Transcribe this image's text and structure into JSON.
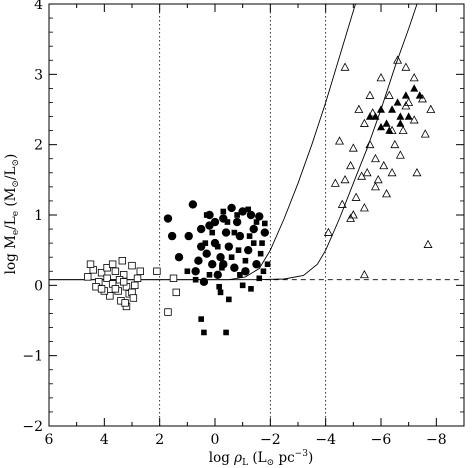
{
  "chart_data": {
    "type": "scatter",
    "title": "",
    "xlabel_parts": {
      "main": "log ",
      "rho": "ρ",
      "rho_sub": "L",
      "open": " (L",
      "sun": "⊙",
      "rest": " pc",
      "exp": "−3",
      "close": ")"
    },
    "ylabel_parts": {
      "main": "log M",
      "sub1": "e",
      "slash": "/L",
      "sub2": "e",
      "open": " (M",
      "sun1": "⊙",
      "mid": "/L",
      "sun2": "⊙",
      "close": ")"
    },
    "x_ticks": [
      {
        "v": 6,
        "label": "6"
      },
      {
        "v": 4,
        "label": "4"
      },
      {
        "v": 2,
        "label": "2"
      },
      {
        "v": 0,
        "label": "0"
      },
      {
        "v": -2,
        "label": "−2"
      },
      {
        "v": -4,
        "label": "−4"
      },
      {
        "v": -6,
        "label": "−6"
      },
      {
        "v": -8,
        "label": "−8"
      }
    ],
    "y_ticks": [
      {
        "v": -2,
        "label": "−2"
      },
      {
        "v": -1,
        "label": "−1"
      },
      {
        "v": 0,
        "label": "0"
      },
      {
        "v": 1,
        "label": "1"
      },
      {
        "v": 2,
        "label": "2"
      },
      {
        "v": 3,
        "label": "3"
      },
      {
        "v": 4,
        "label": "4"
      }
    ],
    "xlim": [
      6,
      -9
    ],
    "ylim": [
      -2,
      4
    ],
    "x_reversed": true,
    "vertical_dotted_lines": [
      2,
      -2,
      -4
    ],
    "reference_lines": [
      {
        "style": "solid",
        "points": [
          [
            6,
            0.08
          ],
          [
            -0.5,
            0.08
          ],
          [
            -1.1,
            0.12
          ],
          [
            -1.6,
            0.24
          ],
          [
            -2.0,
            0.5
          ],
          [
            -2.5,
            0.95
          ],
          [
            -3.0,
            1.45
          ],
          [
            -3.5,
            2.0
          ],
          [
            -4.0,
            2.6
          ],
          [
            -4.5,
            3.25
          ],
          [
            -5.0,
            3.9
          ],
          [
            -5.08,
            4.0
          ]
        ]
      },
      {
        "style": "solid",
        "points": [
          [
            6,
            0.08
          ],
          [
            -1.5,
            0.08
          ],
          [
            -2.5,
            0.09
          ],
          [
            -3.2,
            0.14
          ],
          [
            -3.7,
            0.3
          ],
          [
            -4.0,
            0.5
          ],
          [
            -4.5,
            0.95
          ],
          [
            -5.0,
            1.45
          ],
          [
            -5.5,
            1.95
          ],
          [
            -6.0,
            2.5
          ],
          [
            -6.5,
            3.1
          ],
          [
            -7.0,
            3.65
          ],
          [
            -7.3,
            4.0
          ]
        ]
      },
      {
        "style": "dashed",
        "points": [
          [
            -1.8,
            0.08
          ],
          [
            -8.9,
            0.08
          ]
        ]
      }
    ],
    "series": [
      {
        "marker": "open-square",
        "points": [
          [
            4.4,
            0.22
          ],
          [
            4.1,
            0.18
          ],
          [
            3.9,
            0.1
          ],
          [
            3.6,
            0.2
          ],
          [
            3.3,
            0.15
          ],
          [
            3.0,
            0.28
          ],
          [
            2.8,
            0.1
          ],
          [
            4.2,
            0.05
          ],
          [
            3.7,
            0.02
          ],
          [
            3.2,
            -0.02
          ],
          [
            3.5,
            -0.08
          ],
          [
            3.1,
            -0.12
          ],
          [
            3.8,
            -0.15
          ],
          [
            4.0,
            -0.08
          ],
          [
            3.4,
            -0.22
          ],
          [
            3.2,
            -0.3
          ],
          [
            4.5,
            0.3
          ],
          [
            3.35,
            0.35
          ],
          [
            2.9,
            0.0
          ],
          [
            3.6,
            -0.05
          ],
          [
            3.0,
            -0.1
          ],
          [
            4.3,
            -0.02
          ],
          [
            2.7,
            0.2
          ],
          [
            3.45,
            0.08
          ],
          [
            3.9,
            0.25
          ],
          [
            4.1,
            -0.05
          ],
          [
            3.25,
            -0.25
          ],
          [
            4.6,
            0.12
          ],
          [
            2.1,
            0.2
          ],
          [
            1.5,
            0.1
          ],
          [
            1.4,
            -0.1
          ],
          [
            1.7,
            -0.38
          ],
          [
            3.7,
            0.3
          ],
          [
            3.3,
            0.05
          ],
          [
            2.95,
            -0.18
          ]
        ]
      },
      {
        "marker": "filled-circle",
        "points": [
          [
            1.7,
            0.95
          ],
          [
            0.8,
            1.15
          ],
          [
            -1.6,
            0.98
          ],
          [
            1.55,
            0.7
          ],
          [
            0.95,
            0.7
          ],
          [
            1.3,
            0.4
          ],
          [
            0.7,
            0.2
          ],
          [
            0.5,
            0.55
          ],
          [
            0.2,
            0.85
          ],
          [
            0.4,
            0.05
          ],
          [
            0.1,
            0.3
          ],
          [
            -0.3,
            0.95
          ],
          [
            -0.6,
            1.1
          ],
          [
            -1.0,
            1.05
          ],
          [
            -1.3,
            1.0
          ],
          [
            -1.8,
            0.75
          ],
          [
            0.0,
            0.6
          ],
          [
            0.3,
            0.45
          ],
          [
            -0.5,
            0.55
          ],
          [
            -0.9,
            0.7
          ],
          [
            -1.2,
            0.5
          ],
          [
            -1.5,
            0.3
          ],
          [
            0.6,
            0.35
          ],
          [
            -0.1,
            0.15
          ],
          [
            -0.7,
            0.25
          ],
          [
            -1.1,
            0.2
          ],
          [
            -0.4,
            0.75
          ],
          [
            0.2,
            1.0
          ],
          [
            -0.2,
            0.4
          ],
          [
            -0.8,
            0.9
          ],
          [
            0.5,
            0.8
          ],
          [
            -0.3,
            0.3
          ],
          [
            -1.4,
            0.8
          ],
          [
            0.0,
            0.9
          ]
        ]
      },
      {
        "marker": "filled-square",
        "points": [
          [
            0.5,
            -0.48
          ],
          [
            -0.4,
            -0.67
          ],
          [
            0.4,
            -0.67
          ],
          [
            1.0,
            0.2
          ],
          [
            0.7,
            0.08
          ],
          [
            -0.2,
            -0.1
          ],
          [
            -0.5,
            -0.2
          ],
          [
            -1.0,
            0.0
          ],
          [
            -1.3,
            -0.05
          ],
          [
            -1.6,
            0.1
          ],
          [
            -1.9,
            0.3
          ],
          [
            -1.7,
            0.6
          ],
          [
            -1.5,
            0.9
          ],
          [
            -1.8,
            0.88
          ],
          [
            -1.2,
            1.08
          ],
          [
            -0.8,
            1.0
          ],
          [
            -0.3,
            1.05
          ],
          [
            0.3,
            1.0
          ],
          [
            -0.6,
            0.4
          ],
          [
            -1.1,
            0.35
          ],
          [
            -0.1,
            0.55
          ],
          [
            0.2,
            0.15
          ],
          [
            -0.9,
            0.15
          ],
          [
            -1.4,
            0.6
          ],
          [
            -0.7,
            0.75
          ],
          [
            -0.25,
            0.25
          ],
          [
            0.35,
            0.6
          ],
          [
            -1.65,
            0.45
          ],
          [
            -1.25,
            0.7
          ],
          [
            -0.45,
            0.9
          ],
          [
            0.1,
            0.75
          ],
          [
            -0.15,
            -0.02
          ],
          [
            -1.75,
            0.2
          ],
          [
            -0.85,
            0.5
          ]
        ]
      },
      {
        "marker": "open-triangle",
        "points": [
          [
            -4.7,
            3.1
          ],
          [
            -6.6,
            3.2
          ],
          [
            -6.9,
            3.1
          ],
          [
            -7.2,
            2.95
          ],
          [
            -6.0,
            2.95
          ],
          [
            -5.6,
            2.7
          ],
          [
            -6.3,
            2.7
          ],
          [
            -7.5,
            2.65
          ],
          [
            -7.8,
            2.5
          ],
          [
            -7.2,
            2.35
          ],
          [
            -6.8,
            2.2
          ],
          [
            -6.4,
            2.2
          ],
          [
            -5.2,
            2.5
          ],
          [
            -5.4,
            2.3
          ],
          [
            -5.6,
            2.0
          ],
          [
            -5.0,
            1.95
          ],
          [
            -5.8,
            1.8
          ],
          [
            -6.1,
            1.7
          ],
          [
            -6.4,
            1.6
          ],
          [
            -5.3,
            1.55
          ],
          [
            -4.9,
            1.7
          ],
          [
            -4.7,
            1.5
          ],
          [
            -4.6,
            1.15
          ],
          [
            -5.0,
            1.0
          ],
          [
            -5.4,
            1.1
          ],
          [
            -5.8,
            1.4
          ],
          [
            -6.2,
            1.3
          ],
          [
            -4.35,
            1.45
          ],
          [
            -4.1,
            0.75
          ],
          [
            -7.6,
            2.15
          ],
          [
            -7.7,
            0.58
          ],
          [
            -5.4,
            0.15
          ],
          [
            -7.0,
            2.6
          ],
          [
            -6.7,
            1.85
          ],
          [
            -5.9,
            1.5
          ],
          [
            -5.1,
            1.25
          ],
          [
            -6.5,
            2.0
          ],
          [
            -4.9,
            0.95
          ],
          [
            -5.7,
            2.45
          ],
          [
            -6.9,
            2.55
          ],
          [
            -7.3,
            1.6
          ],
          [
            -4.5,
            2.05
          ],
          [
            -5.5,
            1.6
          ]
        ]
      },
      {
        "marker": "filled-triangle",
        "points": [
          [
            -5.8,
            2.4
          ],
          [
            -6.0,
            2.5
          ],
          [
            -6.4,
            2.5
          ],
          [
            -6.7,
            2.4
          ],
          [
            -6.9,
            2.7
          ],
          [
            -6.6,
            2.6
          ],
          [
            -6.2,
            2.3
          ],
          [
            -6.0,
            2.25
          ],
          [
            -5.6,
            2.4
          ],
          [
            -7.2,
            2.8
          ],
          [
            -7.4,
            2.7
          ],
          [
            -7.0,
            2.4
          ],
          [
            -6.7,
            2.3
          ],
          [
            -6.3,
            2.2
          ]
        ]
      }
    ]
  }
}
